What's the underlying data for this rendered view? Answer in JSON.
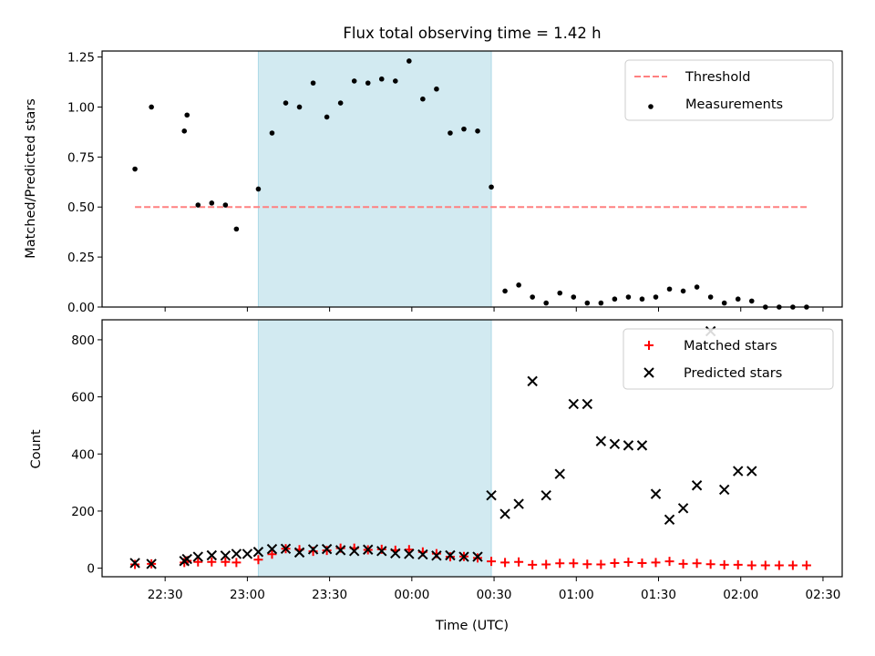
{
  "chart_data": {
    "type": "scatter",
    "title": "Flux total observing time = 1.42 h",
    "xlabel": "Time (UTC)",
    "x_ticks": [
      "22:30",
      "23:00",
      "23:30",
      "00:00",
      "00:30",
      "01:00",
      "01:30",
      "02:00",
      "02:30"
    ],
    "x_range": [
      "22:07",
      "02:37"
    ],
    "shaded_interval": [
      "23:04",
      "00:29"
    ],
    "shade_color": "#add8e6",
    "panels": [
      {
        "ylabel": "Matched/Predicted stars",
        "ylim": [
          0,
          1.28
        ],
        "y_ticks": [
          "0.00",
          "0.25",
          "0.50",
          "0.75",
          "1.00",
          "1.25"
        ],
        "legend_position": "top-right",
        "series": [
          {
            "name": "Threshold",
            "kind": "dashed-line",
            "color": "#ff8080",
            "x": [
              "22:19",
              "02:25"
            ],
            "y": [
              0.5,
              0.5
            ]
          },
          {
            "name": "Measurements",
            "kind": "dot",
            "color": "#000000",
            "x": [
              "22:19",
              "22:25",
              "22:37",
              "22:38",
              "22:42",
              "22:47",
              "22:52",
              "22:56",
              "23:04",
              "23:09",
              "23:14",
              "23:19",
              "23:24",
              "23:29",
              "23:34",
              "23:39",
              "23:44",
              "23:49",
              "23:54",
              "23:59",
              "00:04",
              "00:09",
              "00:14",
              "00:19",
              "00:24",
              "00:29",
              "00:34",
              "00:39",
              "00:44",
              "00:49",
              "00:54",
              "00:59",
              "01:04",
              "01:09",
              "01:14",
              "01:19",
              "01:24",
              "01:29",
              "01:34",
              "01:39",
              "01:44",
              "01:49",
              "01:54",
              "01:59",
              "02:04",
              "02:09",
              "02:14",
              "02:19",
              "02:24"
            ],
            "y": [
              0.69,
              1.0,
              0.88,
              0.96,
              0.51,
              0.52,
              0.51,
              0.39,
              0.59,
              0.87,
              1.02,
              1.0,
              1.12,
              0.95,
              1.02,
              1.13,
              1.12,
              1.14,
              1.13,
              1.23,
              1.04,
              1.09,
              0.87,
              0.89,
              0.88,
              0.6,
              0.08,
              0.11,
              0.05,
              0.02,
              0.07,
              0.05,
              0.02,
              0.02,
              0.04,
              0.05,
              0.04,
              0.05,
              0.09,
              0.08,
              0.1,
              0.05,
              0.02,
              0.04,
              0.03,
              0.0,
              0.0,
              0.0,
              0.0
            ]
          }
        ]
      },
      {
        "ylabel": "Count",
        "ylim": [
          -30,
          870
        ],
        "y_ticks": [
          "0",
          "200",
          "400",
          "600",
          "800"
        ],
        "legend_position": "top-right",
        "series": [
          {
            "name": "Matched stars",
            "kind": "plus",
            "color": "#ff0000",
            "x": [
              "22:19",
              "22:25",
              "22:37",
              "22:38",
              "22:42",
              "22:47",
              "22:52",
              "22:56",
              "23:04",
              "23:09",
              "23:14",
              "23:19",
              "23:24",
              "23:29",
              "23:34",
              "23:39",
              "23:44",
              "23:49",
              "23:54",
              "23:59",
              "00:04",
              "00:09",
              "00:14",
              "00:19",
              "00:24",
              "00:29",
              "00:34",
              "00:39",
              "00:44",
              "00:49",
              "00:54",
              "00:59",
              "01:04",
              "01:09",
              "01:14",
              "01:19",
              "01:24",
              "01:29",
              "01:34",
              "01:39",
              "01:44",
              "01:49",
              "01:54",
              "01:59",
              "02:04",
              "02:09",
              "02:14",
              "02:19",
              "02:24"
            ],
            "y": [
              13,
              15,
              20,
              26,
              22,
              22,
              22,
              20,
              30,
              49,
              68,
              65,
              59,
              62,
              70,
              70,
              64,
              66,
              63,
              65,
              57,
              51,
              40,
              41,
              36,
              24,
              20,
              22,
              12,
              13,
              17,
              17,
              14,
              13,
              18,
              21,
              18,
              20,
              24,
              15,
              17,
              14,
              12,
              12,
              10,
              10,
              10,
              10,
              10
            ]
          },
          {
            "name": "Predicted stars",
            "kind": "x",
            "color": "#000000",
            "x": [
              "22:19",
              "22:25",
              "22:37",
              "22:38",
              "22:42",
              "22:47",
              "22:52",
              "22:56",
              "23:00",
              "23:04",
              "23:09",
              "23:14",
              "23:19",
              "23:24",
              "23:29",
              "23:34",
              "23:39",
              "23:44",
              "23:49",
              "23:54",
              "23:59",
              "00:04",
              "00:09",
              "00:14",
              "00:19",
              "00:24",
              "00:29",
              "00:34",
              "00:39",
              "00:44",
              "00:49",
              "00:54",
              "00:59",
              "01:04",
              "01:09",
              "01:14",
              "01:19",
              "01:24",
              "01:29",
              "01:34",
              "01:39",
              "01:44",
              "01:49",
              "01:54",
              "01:59",
              "02:04"
            ],
            "y": [
              18,
              15,
              25,
              32,
              40,
              45,
              44,
              50,
              50,
              57,
              67,
              68,
              55,
              66,
              67,
              63,
              60,
              65,
              60,
              52,
              50,
              48,
              44,
              45,
              40,
              40,
              255,
              190,
              225,
              655,
              255,
              330,
              575,
              575,
              445,
              435,
              430,
              430,
              260,
              170,
              210,
              290,
              830,
              275,
              340,
              340
            ]
          }
        ]
      }
    ]
  }
}
